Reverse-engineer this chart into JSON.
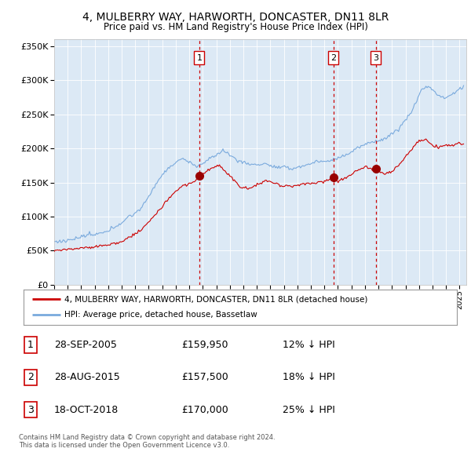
{
  "title1": "4, MULBERRY WAY, HARWORTH, DONCASTER, DN11 8LR",
  "title2": "Price paid vs. HM Land Registry's House Price Index (HPI)",
  "bg_color": "#dce9f5",
  "red_line_color": "#cc0000",
  "blue_line_color": "#7aaadd",
  "marker_color": "#990000",
  "vline_color": "#cc0000",
  "sale1_year": 2005.74,
  "sale1_price": 159950,
  "sale2_year": 2015.66,
  "sale2_price": 157500,
  "sale3_year": 2018.79,
  "sale3_price": 170000,
  "sale1_label": "1",
  "sale2_label": "2",
  "sale3_label": "3",
  "sale1_date": "28-SEP-2005",
  "sale2_date": "28-AUG-2015",
  "sale3_date": "18-OCT-2018",
  "sale1_price_str": "£159,950",
  "sale2_price_str": "£157,500",
  "sale3_price_str": "£170,000",
  "sale1_pct": "12% ↓ HPI",
  "sale2_pct": "18% ↓ HPI",
  "sale3_pct": "25% ↓ HPI",
  "legend_red": "4, MULBERRY WAY, HARWORTH, DONCASTER, DN11 8LR (detached house)",
  "legend_blue": "HPI: Average price, detached house, Bassetlaw",
  "footnote1": "Contains HM Land Registry data © Crown copyright and database right 2024.",
  "footnote2": "This data is licensed under the Open Government Licence v3.0.",
  "ylim_min": 0,
  "ylim_max": 360000,
  "xlim_min": 1995,
  "xlim_max": 2025.5
}
